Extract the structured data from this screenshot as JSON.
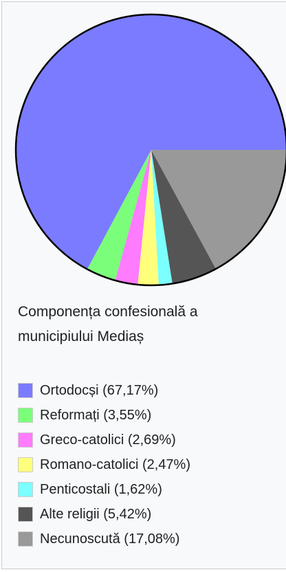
{
  "chart_data": {
    "type": "pie",
    "title": "Componența confesională a municipiului Mediaș",
    "categories": [
      "Ortodocși (67,17%)",
      "Reformați (3,55%)",
      "Greco-catolici (2,69%)",
      "Romano-catolici (2,47%)",
      "Penticostali (1,62%)",
      "Alte religii (5,42%)",
      "Necunoscută (17,08%)"
    ],
    "values": [
      67.17,
      3.55,
      2.69,
      2.47,
      1.62,
      5.42,
      17.08
    ],
    "colors": [
      "#7b7bff",
      "#7bff7b",
      "#ff7bff",
      "#ffff7b",
      "#7bffff",
      "#555555",
      "#999999"
    ]
  }
}
